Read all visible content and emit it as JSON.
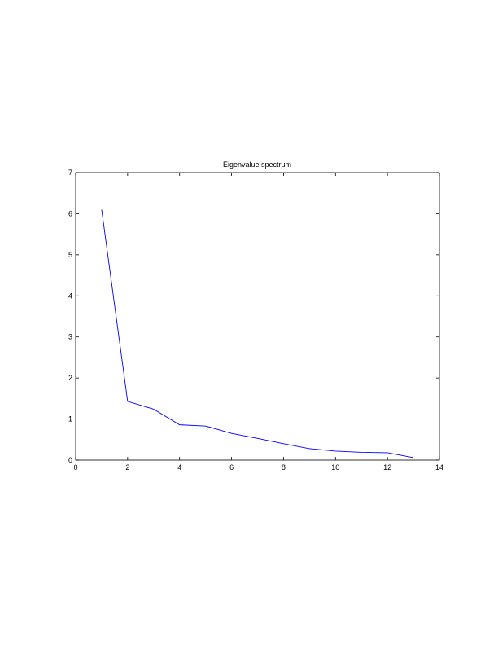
{
  "chart_data": {
    "type": "line",
    "title": "Eigenvalue spectrum",
    "xlabel": "",
    "ylabel": "",
    "xlim": [
      0,
      14
    ],
    "ylim": [
      0,
      7
    ],
    "xticks": [
      0,
      2,
      4,
      6,
      8,
      10,
      12,
      14
    ],
    "yticks": [
      0,
      1,
      2,
      3,
      4,
      5,
      6,
      7
    ],
    "grid": false,
    "series": [
      {
        "color": "#0000ff",
        "x": [
          1,
          2,
          3,
          4,
          5,
          6,
          7,
          8,
          9,
          10,
          11,
          12,
          13
        ],
        "y": [
          6.1,
          1.43,
          1.24,
          0.86,
          0.83,
          0.65,
          0.53,
          0.4,
          0.28,
          0.22,
          0.19,
          0.18,
          0.06
        ]
      }
    ]
  }
}
